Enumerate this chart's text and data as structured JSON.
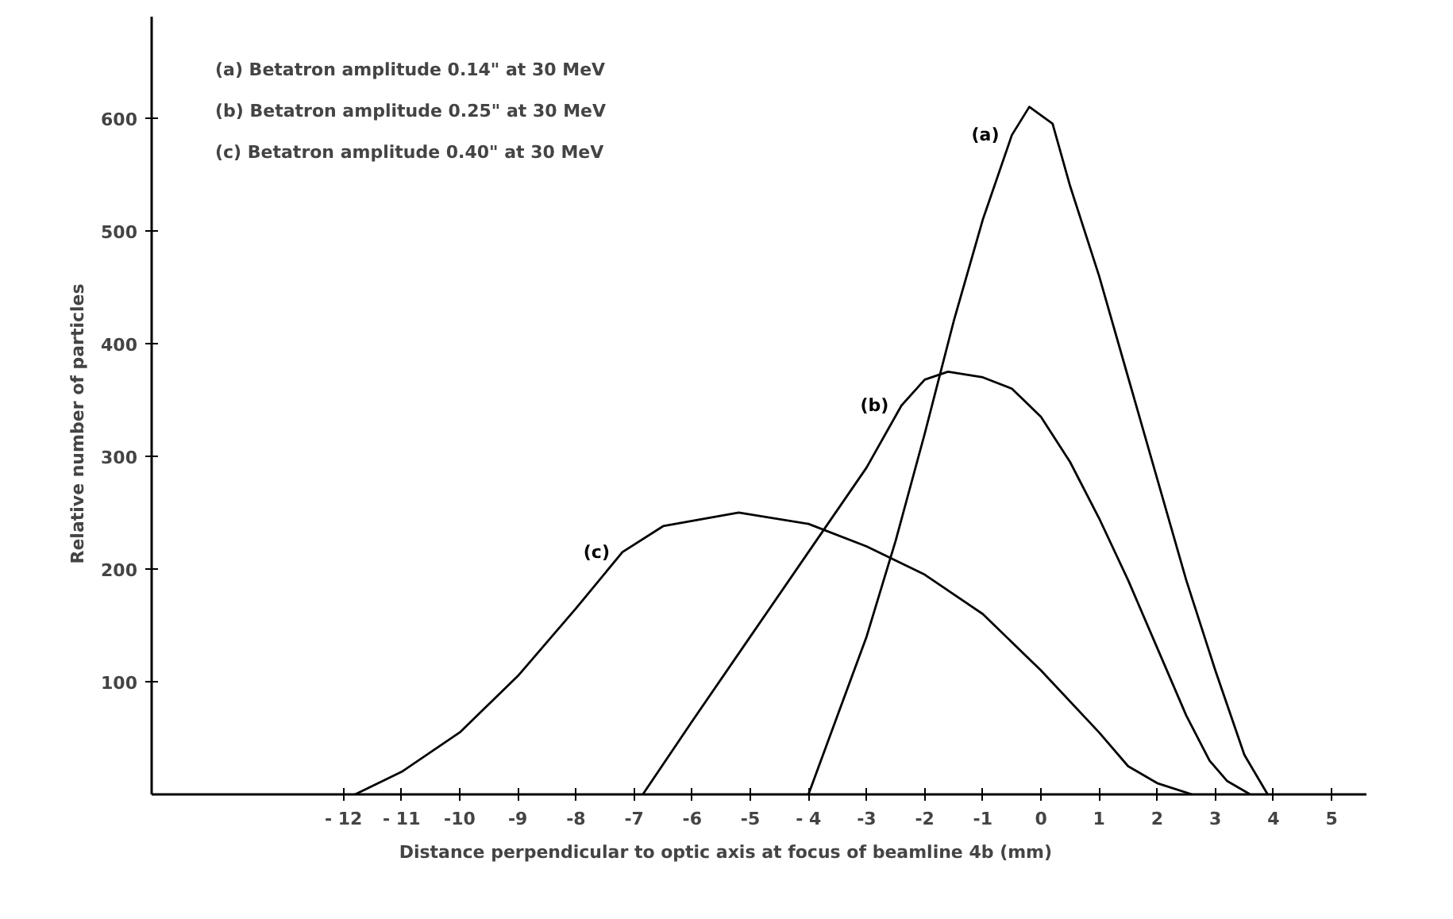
{
  "chart_data": {
    "type": "line",
    "xlabel": "Distance  perpendicular  to  optic  axis  at  focus  of  beamline  4b   (mm)",
    "ylabel": "Relative   number   of   particles",
    "annotations": [
      "(a)  Betatron  amplitude  0.14\" at 30 MeV",
      "(b)  Betatron  amplitude  0.25\" at 30 MeV",
      "(c)  Betatron  amplitude  0.40\" at 30 MeV"
    ],
    "xlim": [
      -15.3,
      5.6
    ],
    "ylim": [
      0,
      690
    ],
    "xticks": [
      {
        "value": -12,
        "label": "- 12"
      },
      {
        "value": -11,
        "label": "- 11"
      },
      {
        "value": -10,
        "label": "-10"
      },
      {
        "value": -9,
        "label": "-9"
      },
      {
        "value": -8,
        "label": "-8"
      },
      {
        "value": -7,
        "label": "-7"
      },
      {
        "value": -6,
        "label": "-6"
      },
      {
        "value": -5,
        "label": "-5"
      },
      {
        "value": -4,
        "label": "- 4"
      },
      {
        "value": -3,
        "label": "-3"
      },
      {
        "value": -2,
        "label": "-2"
      },
      {
        "value": -1,
        "label": "-1"
      },
      0,
      1,
      2,
      3,
      4,
      5
    ],
    "yticks": [
      100,
      200,
      300,
      400,
      500,
      600
    ],
    "grid": false,
    "line_style": "solid",
    "series": [
      {
        "name": "(a)",
        "color": "#000000",
        "x": [
          -4,
          -3.5,
          -3,
          -2.5,
          -2,
          -1.5,
          -1,
          -0.5,
          -0.2,
          0.2,
          0.5,
          1,
          1.5,
          2,
          2.5,
          3,
          3.5,
          3.9
        ],
        "values": [
          0,
          70,
          140,
          225,
          320,
          420,
          510,
          585,
          610,
          595,
          540,
          460,
          370,
          280,
          190,
          110,
          35,
          0
        ]
      },
      {
        "name": "(b)",
        "color": "#000000",
        "x": [
          -6.85,
          -6,
          -5,
          -4,
          -3,
          -2.4,
          -2,
          -1.6,
          -1,
          -0.5,
          0,
          0.5,
          1,
          1.5,
          2,
          2.5,
          2.9,
          3.2,
          3.6
        ],
        "values": [
          0,
          65,
          140,
          215,
          290,
          345,
          368,
          375,
          370,
          360,
          335,
          295,
          245,
          190,
          130,
          70,
          30,
          12,
          0
        ]
      },
      {
        "name": "(c)",
        "color": "#000000",
        "x": [
          -11.8,
          -11,
          -10,
          -9,
          -8,
          -7.2,
          -6.5,
          -5.2,
          -4,
          -3,
          -2,
          -1,
          0,
          1,
          1.5,
          2,
          2.6
        ],
        "values": [
          0,
          20,
          55,
          105,
          165,
          215,
          238,
          250,
          240,
          220,
          195,
          160,
          110,
          55,
          25,
          10,
          0
        ]
      }
    ]
  }
}
